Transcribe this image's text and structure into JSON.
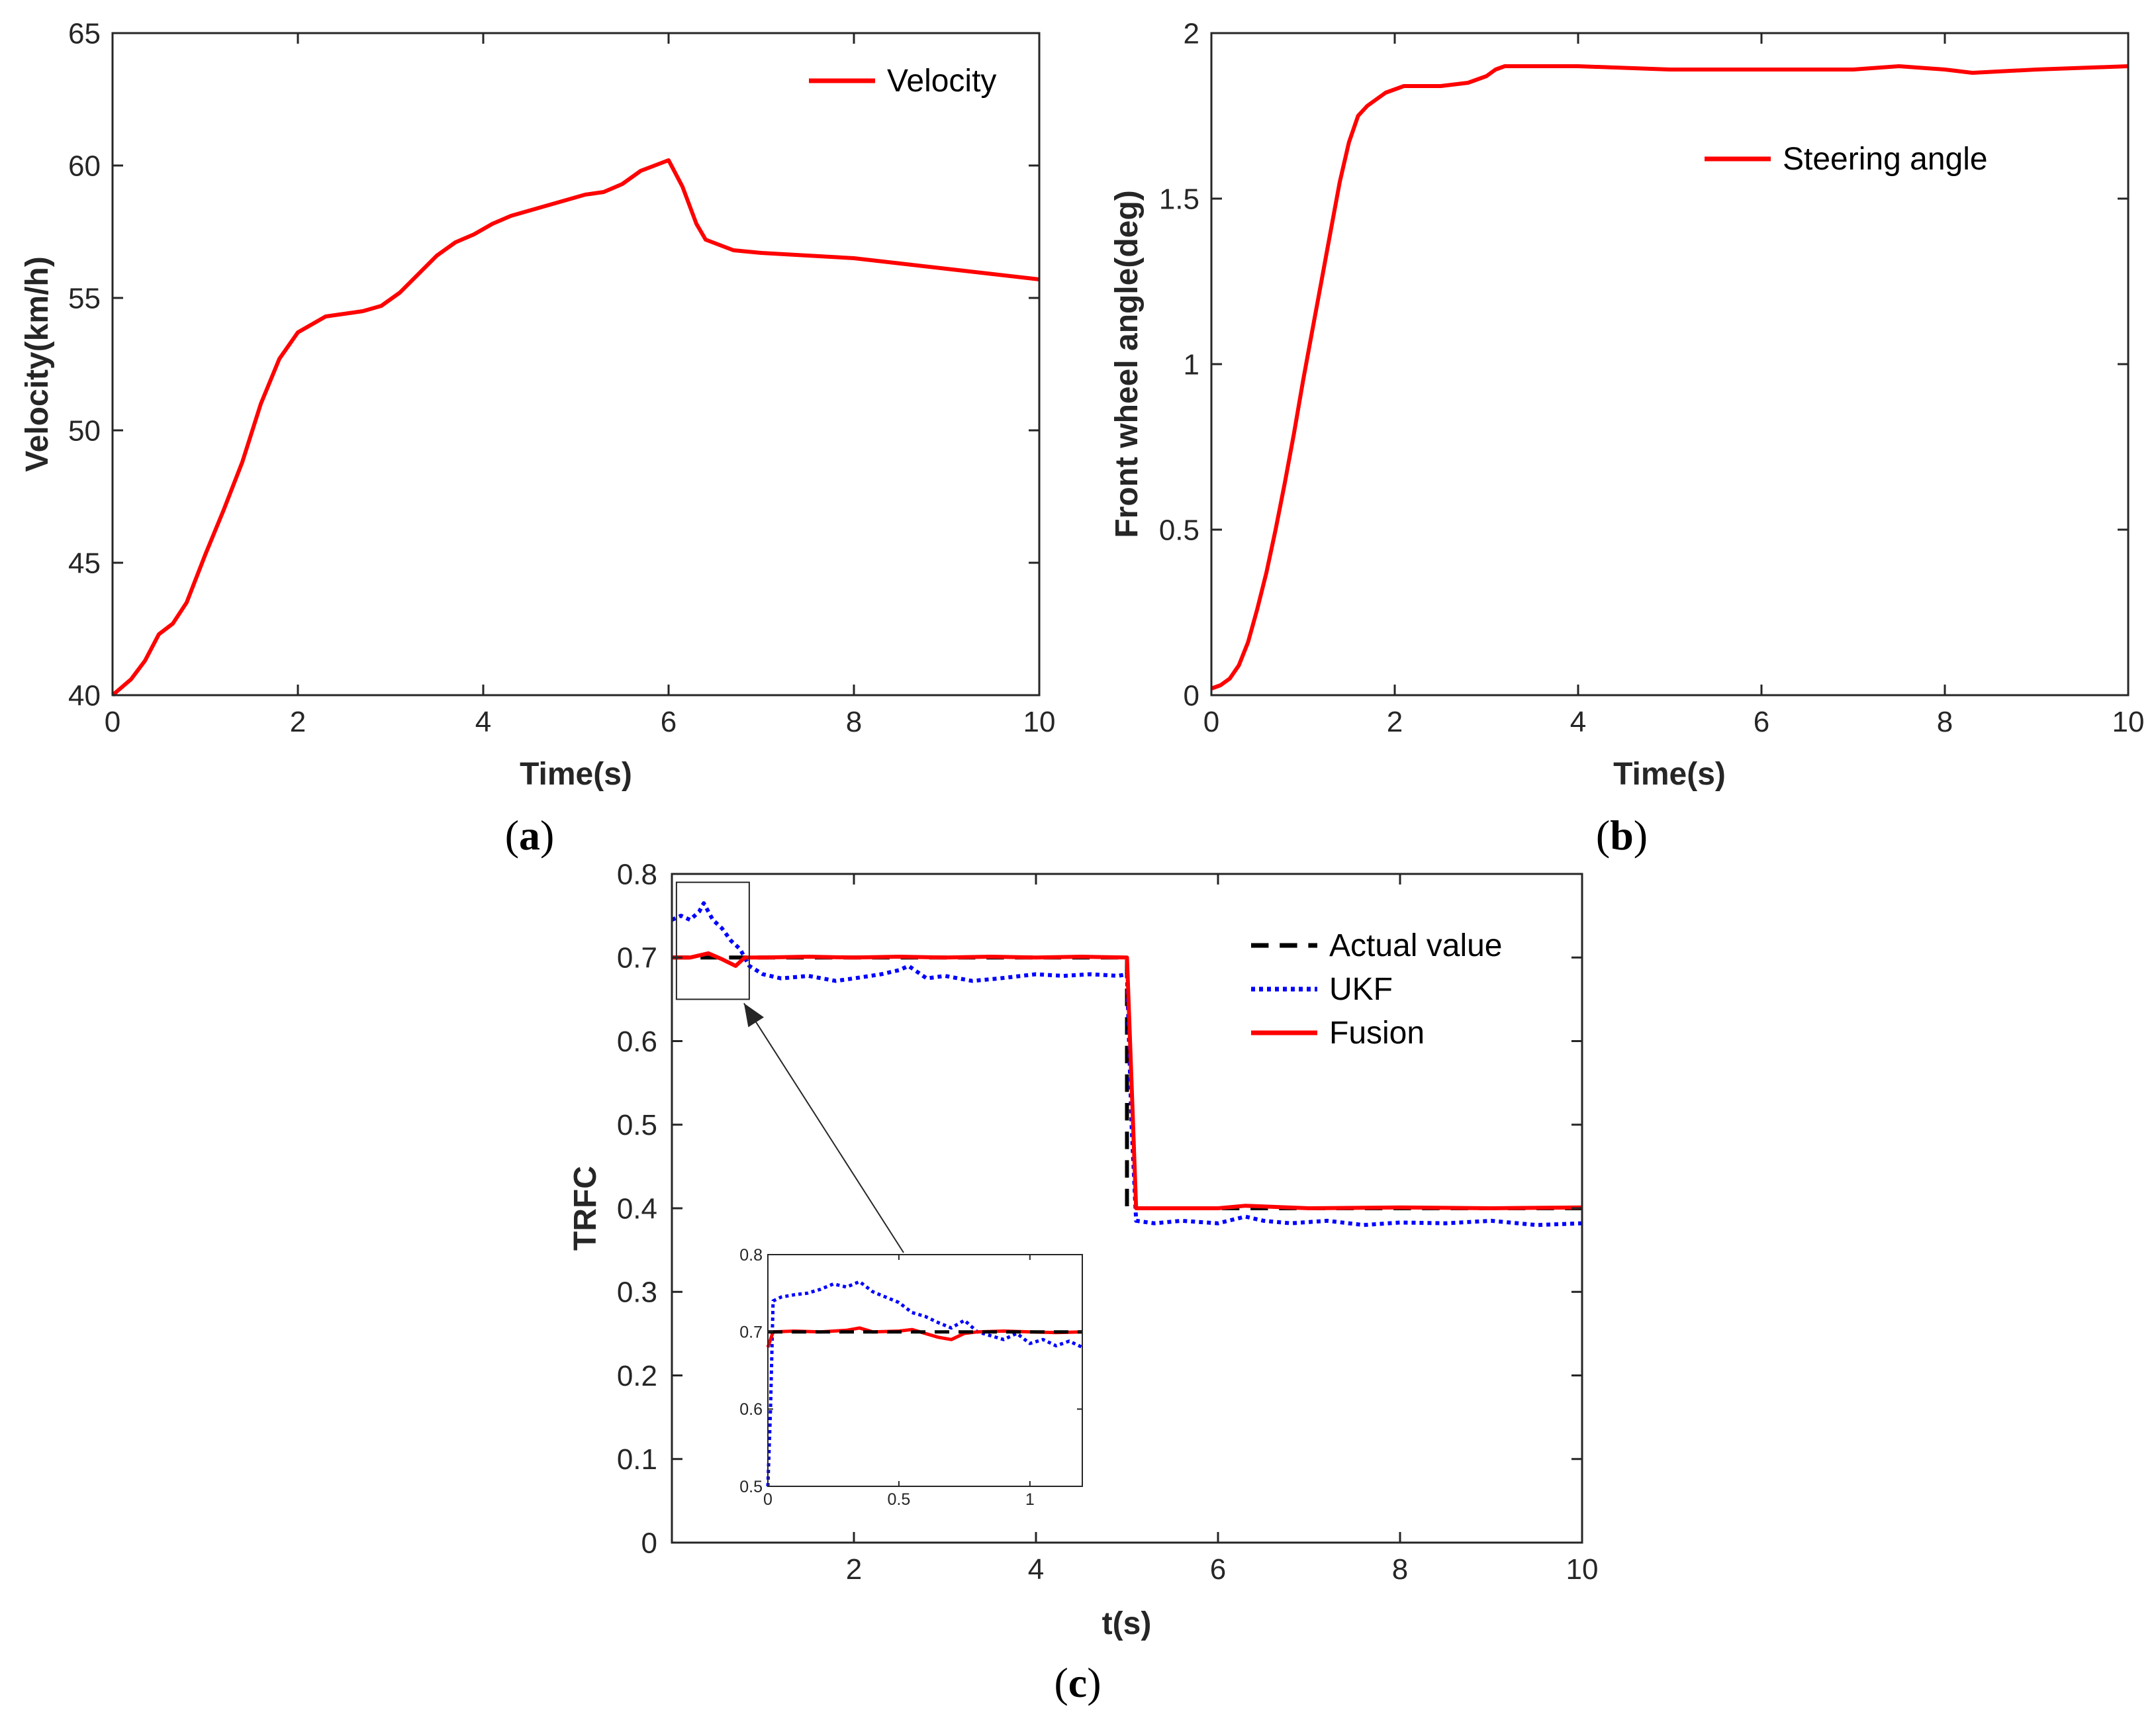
{
  "chart_data": [
    {
      "id": "a",
      "type": "line",
      "caption_letter": "a",
      "xlabel": "Time(s)",
      "ylabel": "Velocity(km/h)",
      "xlim": [
        0,
        10
      ],
      "ylim": [
        40,
        65
      ],
      "xticks": [
        "0",
        "2",
        "4",
        "6",
        "8",
        "10"
      ],
      "yticks": [
        "40",
        "45",
        "50",
        "55",
        "60",
        "65"
      ],
      "legend_position": "top-right",
      "series": [
        {
          "name": "Velocity",
          "color": "#ff0000",
          "style": "solid",
          "x": [
            0,
            0.2,
            0.35,
            0.5,
            0.65,
            0.8,
            1.0,
            1.2,
            1.4,
            1.6,
            1.8,
            2.0,
            2.1,
            2.3,
            2.5,
            2.7,
            2.9,
            3.1,
            3.3,
            3.5,
            3.7,
            3.9,
            4.1,
            4.3,
            4.5,
            4.7,
            4.9,
            5.1,
            5.3,
            5.5,
            5.7,
            5.85,
            6.0,
            6.15,
            6.3,
            6.4,
            6.55,
            6.7,
            7.0,
            7.5,
            8.0,
            8.5,
            9.0,
            9.5,
            10.0
          ],
          "y": [
            40.0,
            40.6,
            41.3,
            42.3,
            42.7,
            43.5,
            45.3,
            47.0,
            48.8,
            51.0,
            52.7,
            53.7,
            53.9,
            54.3,
            54.4,
            54.5,
            54.7,
            55.2,
            55.9,
            56.6,
            57.1,
            57.4,
            57.8,
            58.1,
            58.3,
            58.5,
            58.7,
            58.9,
            59.0,
            59.3,
            59.8,
            60.0,
            60.2,
            59.2,
            57.8,
            57.2,
            57.0,
            56.8,
            56.7,
            56.6,
            56.5,
            56.3,
            56.1,
            55.9,
            55.7
          ]
        }
      ]
    },
    {
      "id": "b",
      "type": "line",
      "caption_letter": "b",
      "xlabel": "Time(s)",
      "ylabel": "Front wheel angle(deg)",
      "xlim": [
        0,
        10
      ],
      "ylim": [
        0,
        2
      ],
      "xticks": [
        "0",
        "2",
        "4",
        "6",
        "8",
        "10"
      ],
      "yticks": [
        "0",
        "0.5",
        "1",
        "1.5",
        "2"
      ],
      "legend_position": "top-right",
      "series": [
        {
          "name": "Steering angle",
          "color": "#ff0000",
          "style": "solid",
          "x": [
            0,
            0.1,
            0.2,
            0.3,
            0.4,
            0.5,
            0.6,
            0.7,
            0.8,
            0.9,
            1.0,
            1.1,
            1.2,
            1.3,
            1.4,
            1.5,
            1.6,
            1.7,
            1.8,
            1.9,
            2.0,
            2.1,
            2.2,
            2.5,
            2.8,
            3.0,
            3.1,
            3.2,
            3.5,
            4.0,
            5.0,
            6.0,
            7.0,
            7.5,
            8.0,
            8.3,
            9.0,
            10.0
          ],
          "y": [
            0.02,
            0.03,
            0.05,
            0.09,
            0.16,
            0.26,
            0.37,
            0.5,
            0.64,
            0.79,
            0.95,
            1.1,
            1.25,
            1.4,
            1.55,
            1.67,
            1.75,
            1.78,
            1.8,
            1.82,
            1.83,
            1.84,
            1.84,
            1.84,
            1.85,
            1.87,
            1.89,
            1.9,
            1.9,
            1.9,
            1.89,
            1.89,
            1.89,
            1.9,
            1.89,
            1.88,
            1.89,
            1.9
          ]
        }
      ]
    },
    {
      "id": "c",
      "type": "line",
      "caption_letter": "c",
      "xlabel": "t(s)",
      "ylabel": "TRFC",
      "xlim": [
        0,
        10
      ],
      "ylim": [
        0,
        0.8
      ],
      "xticks": [
        "2",
        "4",
        "6",
        "8",
        "10"
      ],
      "yticks": [
        "0",
        "0.1",
        "0.2",
        "0.3",
        "0.4",
        "0.5",
        "0.6",
        "0.7",
        "0.8"
      ],
      "legend_position": "top-right",
      "zoom_box": {
        "x": [
          0.05,
          0.85
        ],
        "y": [
          0.65,
          0.79
        ]
      },
      "series": [
        {
          "name": "Actual value",
          "color": "#000000",
          "style": "dashed",
          "x": [
            0,
            5,
            5,
            10
          ],
          "y": [
            0.7,
            0.7,
            0.4,
            0.4
          ]
        },
        {
          "name": "UKF",
          "color": "#0000ff",
          "style": "dotted",
          "x": [
            0,
            0.1,
            0.2,
            0.3,
            0.35,
            0.45,
            0.55,
            0.65,
            0.75,
            0.85,
            1.0,
            1.2,
            1.5,
            1.8,
            2.0,
            2.3,
            2.5,
            2.6,
            2.8,
            3.0,
            3.3,
            3.6,
            4.0,
            4.3,
            4.6,
            4.9,
            5.0,
            5.05,
            5.1,
            5.3,
            5.6,
            6.0,
            6.3,
            6.5,
            6.8,
            7.2,
            7.6,
            8.0,
            8.5,
            9.0,
            9.5,
            10.0
          ],
          "y": [
            0.745,
            0.75,
            0.745,
            0.755,
            0.765,
            0.745,
            0.735,
            0.72,
            0.71,
            0.69,
            0.68,
            0.675,
            0.678,
            0.672,
            0.675,
            0.68,
            0.685,
            0.69,
            0.675,
            0.678,
            0.672,
            0.675,
            0.68,
            0.678,
            0.68,
            0.678,
            0.68,
            0.5,
            0.385,
            0.382,
            0.385,
            0.382,
            0.39,
            0.385,
            0.382,
            0.385,
            0.38,
            0.383,
            0.382,
            0.385,
            0.38,
            0.382
          ]
        },
        {
          "name": "Fusion",
          "color": "#ff0000",
          "style": "solid",
          "x": [
            0,
            0.2,
            0.4,
            0.55,
            0.7,
            0.8,
            1.0,
            1.5,
            2.0,
            2.5,
            3.0,
            3.5,
            4.0,
            4.5,
            5.0,
            5.05,
            5.1,
            6.0,
            6.3,
            7.0,
            8.0,
            9.0,
            10.0
          ],
          "y": [
            0.7,
            0.7,
            0.705,
            0.698,
            0.69,
            0.7,
            0.7,
            0.701,
            0.7,
            0.701,
            0.7,
            0.701,
            0.7,
            0.701,
            0.7,
            0.55,
            0.4,
            0.4,
            0.403,
            0.4,
            0.401,
            0.4,
            0.401
          ]
        }
      ],
      "inset": {
        "xlim": [
          0,
          1.2
        ],
        "ylim": [
          0.5,
          0.8
        ],
        "xticks": [
          "0",
          "0.5",
          "1"
        ],
        "yticks": [
          "0.5",
          "0.6",
          "0.7",
          "0.8"
        ],
        "series": [
          {
            "name": "UKF",
            "color": "#0000ff",
            "style": "dotted",
            "x": [
              0,
              0.01,
              0.02,
              0.05,
              0.1,
              0.15,
              0.2,
              0.25,
              0.3,
              0.35,
              0.4,
              0.45,
              0.5,
              0.55,
              0.6,
              0.65,
              0.7,
              0.75,
              0.8,
              0.85,
              0.9,
              0.95,
              1.0,
              1.05,
              1.1,
              1.15,
              1.2
            ],
            "y": [
              0.5,
              0.6,
              0.74,
              0.745,
              0.748,
              0.75,
              0.755,
              0.762,
              0.758,
              0.765,
              0.752,
              0.745,
              0.738,
              0.725,
              0.72,
              0.712,
              0.705,
              0.715,
              0.7,
              0.695,
              0.69,
              0.698,
              0.685,
              0.69,
              0.682,
              0.688,
              0.68
            ]
          },
          {
            "name": "Fusion",
            "color": "#ff0000",
            "style": "solid",
            "x": [
              0,
              0.02,
              0.1,
              0.2,
              0.3,
              0.35,
              0.4,
              0.5,
              0.55,
              0.6,
              0.65,
              0.7,
              0.75,
              0.8,
              0.9,
              1.0,
              1.1,
              1.2
            ],
            "y": [
              0.68,
              0.7,
              0.701,
              0.7,
              0.702,
              0.705,
              0.7,
              0.701,
              0.703,
              0.698,
              0.693,
              0.69,
              0.698,
              0.7,
              0.701,
              0.7,
              0.699,
              0.7
            ]
          },
          {
            "name": "Actual value",
            "color": "#000000",
            "style": "dashed",
            "x": [
              0,
              1.2
            ],
            "y": [
              0.7,
              0.7
            ]
          }
        ]
      }
    }
  ]
}
